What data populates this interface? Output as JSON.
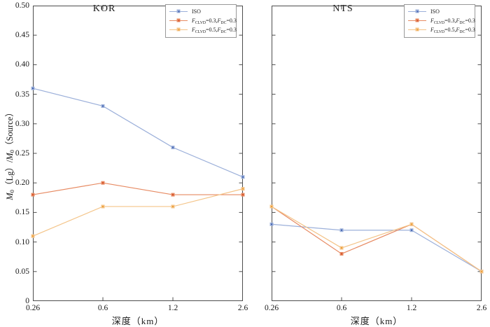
{
  "figure": {
    "background": "#ffffff"
  },
  "axes": {
    "xlabel": "深度（km）",
    "ylabel_parts": [
      {
        "t": "M",
        "i": 1
      },
      {
        "t": "0",
        "sub": 1
      },
      {
        "t": "（Lg）/"
      },
      {
        "t": "M",
        "i": 1
      },
      {
        "t": "0",
        "sub": 1
      },
      {
        "t": "（Source）"
      }
    ],
    "xtick_labels": [
      "0.26",
      "0.6",
      "1.2",
      "2.6"
    ],
    "ytick_labels": [
      "0.50",
      "0.45",
      "0.40",
      "0.35",
      "0.30",
      "0.25",
      "0.20",
      "0.15",
      "0.10",
      "0.05",
      "0"
    ],
    "axis_color": "#4d4d4d",
    "tick_length": 5
  },
  "legend": {
    "border_color": "#999999",
    "entries": [
      {
        "parts": [
          {
            "t": "ISO"
          }
        ]
      },
      {
        "parts": [
          {
            "t": "F",
            "i": 1
          },
          {
            "t": "CLVD",
            "sub": 1
          },
          {
            "t": "=0.3,"
          },
          {
            "t": "F",
            "i": 1
          },
          {
            "t": "DC",
            "sub": 1
          },
          {
            "t": "=0.3"
          }
        ]
      },
      {
        "parts": [
          {
            "t": "F",
            "i": 1
          },
          {
            "t": "CLVD",
            "sub": 1
          },
          {
            "t": "=0.5,"
          },
          {
            "t": "F",
            "i": 1
          },
          {
            "t": "DC",
            "sub": 1
          },
          {
            "t": "=0.3"
          }
        ]
      }
    ]
  },
  "chart_data": [
    {
      "type": "line",
      "title": "KOR",
      "x": [
        0.26,
        0.6,
        1.2,
        2.6
      ],
      "xlabel": "深度（km）",
      "ylabel": "M0(Lg)/M0(Source)",
      "ylim": [
        0,
        0.5
      ],
      "ytick_step": 0.05,
      "grid": false,
      "legend_position": "top-right",
      "series": [
        {
          "name": "ISO",
          "values": [
            0.36,
            0.33,
            0.26,
            0.21
          ],
          "line_color": "#9cb0da",
          "marker_color": "#3f5fae"
        },
        {
          "name": "F_CLVD=0.3, F_DC=0.3",
          "values": [
            0.18,
            0.2,
            0.18,
            0.18
          ],
          "line_color": "#e78a62",
          "marker_color": "#d14f27"
        },
        {
          "name": "F_CLVD=0.5, F_DC=0.3",
          "values": [
            0.11,
            0.16,
            0.16,
            0.19
          ],
          "line_color": "#f4c488",
          "marker_color": "#ec9c35"
        }
      ]
    },
    {
      "type": "line",
      "title": "NTS",
      "x": [
        0.26,
        0.6,
        1.2,
        2.6
      ],
      "xlabel": "深度（km）",
      "ylabel": "M0(Lg)/M0(Source)",
      "ylim": [
        0,
        0.5
      ],
      "ytick_step": 0.05,
      "grid": false,
      "legend_position": "top-right",
      "series": [
        {
          "name": "ISO",
          "values": [
            0.13,
            0.12,
            0.12,
            0.05
          ],
          "line_color": "#9cb0da",
          "marker_color": "#3f5fae"
        },
        {
          "name": "F_CLVD=0.3, F_DC=0.3",
          "values": [
            0.16,
            0.08,
            0.13,
            0.05
          ],
          "line_color": "#e78a62",
          "marker_color": "#d14f27"
        },
        {
          "name": "F_CLVD=0.5, F_DC=0.3",
          "values": [
            0.16,
            0.09,
            0.13,
            0.05
          ],
          "line_color": "#f4c488",
          "marker_color": "#ec9c35"
        }
      ]
    }
  ]
}
